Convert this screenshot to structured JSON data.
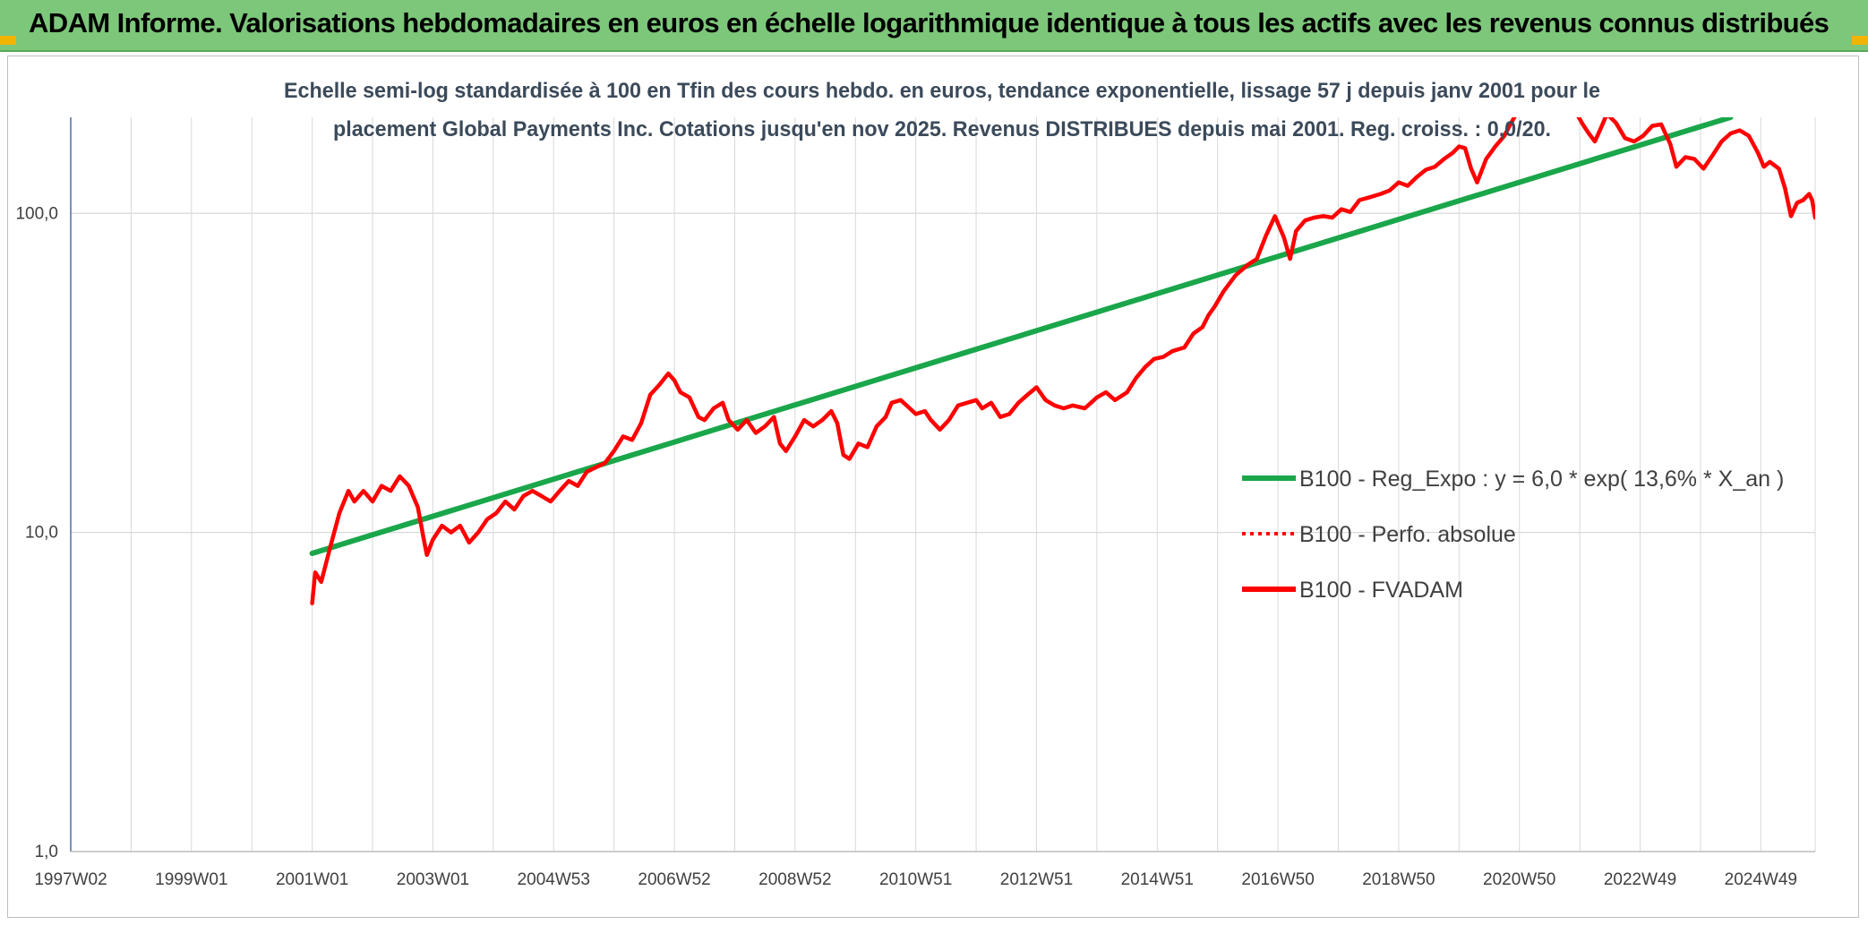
{
  "header": {
    "title": "ADAM Informe. Valorisations hebdomadaires en euros en échelle logarithmique identique à tous les actifs avec les revenus connus distribués"
  },
  "colors": {
    "banner": "#7dc77b",
    "corner_accent": "#f2b400",
    "trend": "#1aa64a",
    "fvadam": "#ff0000",
    "perfo": "#ff0000",
    "grid": "#d9d9d9"
  },
  "chart_data": {
    "type": "line",
    "title_line1": "Echelle semi-log standardisée à 100 en Tfin des cours hebdo. en euros, tendance exponentielle, lissage 57 j depuis janv 2001 pour le",
    "title_line2": "placement Global Payments Inc. Cotations jusqu'en nov 2025. Revenus DISTRIBUES depuis mai 2001. Reg. croiss. : 0,0/20.",
    "y_scale": "log",
    "ylim": [
      1,
      200
    ],
    "y_ticks": [
      {
        "value": 1,
        "label": "1,0"
      },
      {
        "value": 10,
        "label": "10,0"
      },
      {
        "value": 100,
        "label": "100,0"
      }
    ],
    "xlim": [
      1997.0,
      2025.9
    ],
    "x_ticks": [
      {
        "year": 1997.0,
        "label": "1997W02"
      },
      {
        "year": 1999.0,
        "label": "1999W01"
      },
      {
        "year": 2001.0,
        "label": "2001W01"
      },
      {
        "year": 2003.0,
        "label": "2003W01"
      },
      {
        "year": 2005.0,
        "label": "2004W53"
      },
      {
        "year": 2007.0,
        "label": "2006W52"
      },
      {
        "year": 2009.0,
        "label": "2008W52"
      },
      {
        "year": 2011.0,
        "label": "2010W51"
      },
      {
        "year": 2013.0,
        "label": "2012W51"
      },
      {
        "year": 2015.0,
        "label": "2014W51"
      },
      {
        "year": 2017.0,
        "label": "2016W50"
      },
      {
        "year": 2019.0,
        "label": "2018W50"
      },
      {
        "year": 2021.0,
        "label": "2020W50"
      },
      {
        "year": 2023.0,
        "label": "2022W49"
      },
      {
        "year": 2025.0,
        "label": "2024W49"
      }
    ],
    "grid": "vertical-and-horizontal",
    "legend_position": "bottom-right",
    "series": [
      {
        "name": "B100 - Reg_Expo : y = 6,0 * exp( 13,6% *  X_an )",
        "style": "solid-thick",
        "color": "#1aa64a",
        "points": [
          [
            2001.0,
            8.6
          ],
          [
            2024.5,
            200
          ]
        ]
      },
      {
        "name": "B100 - Perfo. absolue",
        "style": "dotted",
        "color": "#ff0000",
        "points": []
      },
      {
        "name": "B100 - FVADAM",
        "style": "solid-thick",
        "color": "#ff0000",
        "points": [
          [
            2001.0,
            6.0
          ],
          [
            2001.05,
            7.5
          ],
          [
            2001.15,
            7.0
          ],
          [
            2001.3,
            9.0
          ],
          [
            2001.45,
            11.5
          ],
          [
            2001.6,
            13.5
          ],
          [
            2001.7,
            12.5
          ],
          [
            2001.85,
            13.5
          ],
          [
            2002.0,
            12.5
          ],
          [
            2002.15,
            14.0
          ],
          [
            2002.3,
            13.5
          ],
          [
            2002.45,
            15.0
          ],
          [
            2002.6,
            14.0
          ],
          [
            2002.75,
            12.0
          ],
          [
            2002.85,
            9.5
          ],
          [
            2002.9,
            8.5
          ],
          [
            2003.0,
            9.5
          ],
          [
            2003.15,
            10.5
          ],
          [
            2003.3,
            10.0
          ],
          [
            2003.45,
            10.5
          ],
          [
            2003.6,
            9.3
          ],
          [
            2003.75,
            10.0
          ],
          [
            2003.9,
            11.0
          ],
          [
            2004.05,
            11.5
          ],
          [
            2004.2,
            12.5
          ],
          [
            2004.35,
            11.8
          ],
          [
            2004.5,
            13.0
          ],
          [
            2004.65,
            13.5
          ],
          [
            2004.8,
            13.0
          ],
          [
            2004.95,
            12.5
          ],
          [
            2005.1,
            13.5
          ],
          [
            2005.25,
            14.5
          ],
          [
            2005.4,
            14.0
          ],
          [
            2005.55,
            15.5
          ],
          [
            2005.7,
            16.0
          ],
          [
            2005.85,
            16.5
          ],
          [
            2006.0,
            18.0
          ],
          [
            2006.15,
            20.0
          ],
          [
            2006.3,
            19.5
          ],
          [
            2006.45,
            22.0
          ],
          [
            2006.6,
            27.0
          ],
          [
            2006.75,
            29.0
          ],
          [
            2006.9,
            31.5
          ],
          [
            2007.0,
            30.0
          ],
          [
            2007.1,
            27.5
          ],
          [
            2007.25,
            26.5
          ],
          [
            2007.4,
            23.0
          ],
          [
            2007.5,
            22.5
          ],
          [
            2007.65,
            24.5
          ],
          [
            2007.8,
            25.5
          ],
          [
            2007.9,
            22.5
          ],
          [
            2008.05,
            21.0
          ],
          [
            2008.2,
            22.5
          ],
          [
            2008.35,
            20.5
          ],
          [
            2008.5,
            21.5
          ],
          [
            2008.65,
            23.0
          ],
          [
            2008.75,
            19.0
          ],
          [
            2008.85,
            18.0
          ],
          [
            2009.0,
            20.0
          ],
          [
            2009.15,
            22.5
          ],
          [
            2009.3,
            21.5
          ],
          [
            2009.45,
            22.5
          ],
          [
            2009.6,
            24.0
          ],
          [
            2009.7,
            22.0
          ],
          [
            2009.8,
            17.5
          ],
          [
            2009.9,
            17.0
          ],
          [
            2010.05,
            19.0
          ],
          [
            2010.2,
            18.5
          ],
          [
            2010.35,
            21.5
          ],
          [
            2010.5,
            23.0
          ],
          [
            2010.6,
            25.5
          ],
          [
            2010.75,
            26.0
          ],
          [
            2010.9,
            24.5
          ],
          [
            2011.0,
            23.5
          ],
          [
            2011.15,
            24.0
          ],
          [
            2011.25,
            22.5
          ],
          [
            2011.4,
            21.0
          ],
          [
            2011.55,
            22.5
          ],
          [
            2011.7,
            25.0
          ],
          [
            2011.85,
            25.5
          ],
          [
            2012.0,
            26.0
          ],
          [
            2012.1,
            24.5
          ],
          [
            2012.25,
            25.5
          ],
          [
            2012.4,
            23.0
          ],
          [
            2012.55,
            23.5
          ],
          [
            2012.7,
            25.5
          ],
          [
            2012.85,
            27.0
          ],
          [
            2013.0,
            28.5
          ],
          [
            2013.15,
            26.0
          ],
          [
            2013.3,
            25.0
          ],
          [
            2013.45,
            24.5
          ],
          [
            2013.6,
            25.0
          ],
          [
            2013.8,
            24.5
          ],
          [
            2014.0,
            26.5
          ],
          [
            2014.15,
            27.5
          ],
          [
            2014.3,
            26.0
          ],
          [
            2014.5,
            27.5
          ],
          [
            2014.65,
            30.5
          ],
          [
            2014.8,
            33.0
          ],
          [
            2014.95,
            35.0
          ],
          [
            2015.1,
            35.5
          ],
          [
            2015.25,
            37.0
          ],
          [
            2015.45,
            38.0
          ],
          [
            2015.6,
            42.0
          ],
          [
            2015.75,
            44.0
          ],
          [
            2015.85,
            48.0
          ],
          [
            2015.95,
            51.0
          ],
          [
            2016.1,
            57.0
          ],
          [
            2016.3,
            64.0
          ],
          [
            2016.5,
            69.0
          ],
          [
            2016.65,
            72.0
          ],
          [
            2016.8,
            85.0
          ],
          [
            2016.95,
            98.0
          ],
          [
            2017.1,
            84.0
          ],
          [
            2017.2,
            72.0
          ],
          [
            2017.3,
            88.0
          ],
          [
            2017.45,
            95.0
          ],
          [
            2017.6,
            97.0
          ],
          [
            2017.75,
            98.0
          ],
          [
            2017.9,
            97.0
          ],
          [
            2018.05,
            103.0
          ],
          [
            2018.2,
            101.0
          ],
          [
            2018.35,
            110.0
          ],
          [
            2018.5,
            112.0
          ],
          [
            2018.7,
            115.0
          ],
          [
            2018.85,
            118.0
          ],
          [
            2019.0,
            125.0
          ],
          [
            2019.15,
            122.0
          ],
          [
            2019.3,
            130.0
          ],
          [
            2019.45,
            137.0
          ],
          [
            2019.6,
            140.0
          ],
          [
            2019.75,
            148.0
          ],
          [
            2019.9,
            155.0
          ],
          [
            2020.0,
            162.0
          ],
          [
            2020.1,
            160.0
          ],
          [
            2020.2,
            138.0
          ],
          [
            2020.3,
            125.0
          ],
          [
            2020.45,
            148.0
          ],
          [
            2020.6,
            162.0
          ],
          [
            2020.75,
            175.0
          ],
          [
            2020.85,
            190.0
          ],
          [
            2020.95,
            205.0
          ]
        ]
      },
      {
        "name": "B100 - FVADAM",
        "style": "solid-thick",
        "color": "#ff0000",
        "legend": false,
        "points": [
          [
            2021.95,
            205.0
          ],
          [
            2022.05,
            190.0
          ],
          [
            2022.15,
            178.0
          ],
          [
            2022.25,
            168.0
          ],
          [
            2022.35,
            185.0
          ],
          [
            2022.45,
            205.0
          ],
          [
            2022.6,
            192.0
          ],
          [
            2022.75,
            172.0
          ],
          [
            2022.9,
            168.0
          ],
          [
            2023.05,
            175.0
          ],
          [
            2023.2,
            188.0
          ],
          [
            2023.35,
            190.0
          ],
          [
            2023.5,
            165.0
          ],
          [
            2023.6,
            140.0
          ],
          [
            2023.75,
            150.0
          ],
          [
            2023.9,
            148.0
          ],
          [
            2024.05,
            138.0
          ],
          [
            2024.2,
            152.0
          ],
          [
            2024.35,
            168.0
          ],
          [
            2024.5,
            178.0
          ],
          [
            2024.65,
            182.0
          ],
          [
            2024.8,
            175.0
          ],
          [
            2024.95,
            155.0
          ],
          [
            2025.05,
            140.0
          ],
          [
            2025.15,
            145.0
          ],
          [
            2025.3,
            138.0
          ],
          [
            2025.4,
            120.0
          ],
          [
            2025.5,
            98.0
          ],
          [
            2025.6,
            108.0
          ],
          [
            2025.7,
            110.0
          ],
          [
            2025.8,
            115.0
          ],
          [
            2025.85,
            110.0
          ],
          [
            2025.9,
            97.0
          ]
        ]
      }
    ]
  }
}
